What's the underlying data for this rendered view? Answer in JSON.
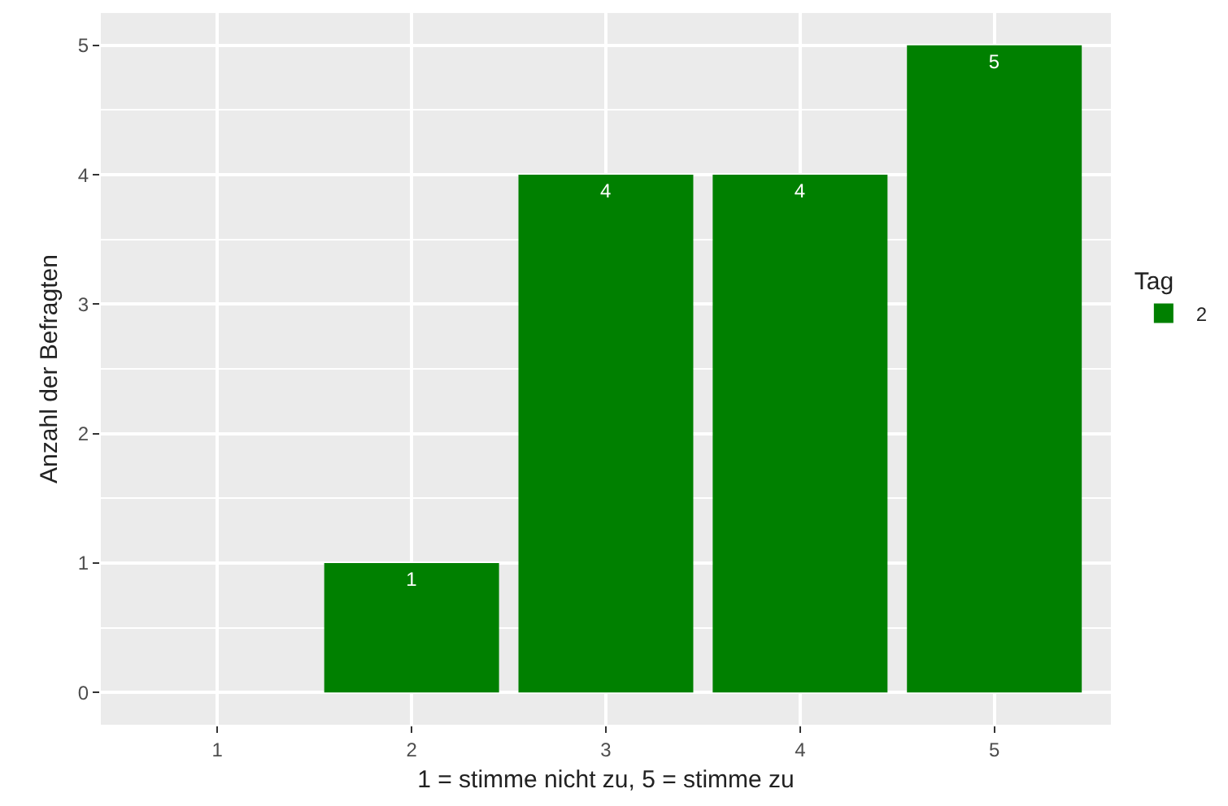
{
  "chart_data": {
    "type": "bar",
    "xlabel": "1 = stimme nicht zu, 5 = stimme zu",
    "ylabel": "Anzahl der Befragten",
    "legend_title": "Tag",
    "categories": [
      "1",
      "2",
      "3",
      "4",
      "5"
    ],
    "series": [
      {
        "name": "2",
        "color": "#008000",
        "values": [
          null,
          1,
          4,
          4,
          5
        ]
      }
    ],
    "ylim": [
      -0.25,
      5.25
    ],
    "yticks": [
      0,
      1,
      2,
      3,
      4,
      5
    ],
    "grid": true,
    "legend": "right",
    "data_labels": true
  }
}
